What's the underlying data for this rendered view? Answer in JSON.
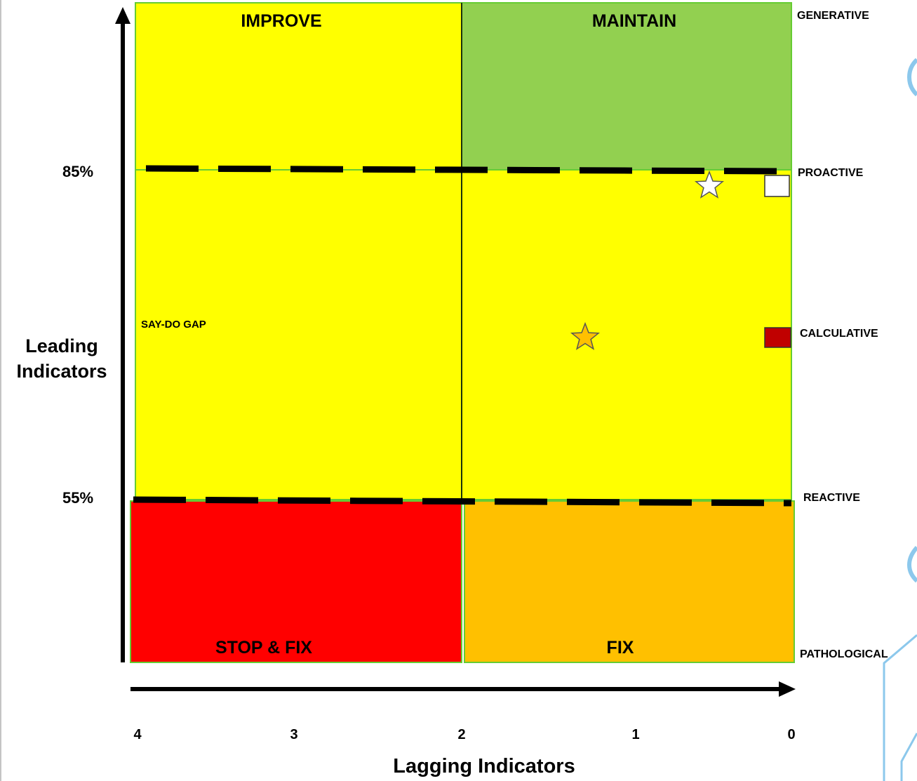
{
  "quadrants": {
    "improve": "IMPROVE",
    "maintain": "MAINTAIN",
    "stop_fix": "STOP & FIX",
    "fix": "FIX"
  },
  "gap_label": "SAY-DO GAP",
  "culture_levels": {
    "generative": "GENERATIVE",
    "proactive": "PROACTIVE",
    "calculative": "CALCULATIVE",
    "reactive": "REACTIVE",
    "pathological": "PATHOLOGICAL"
  },
  "y_axis": {
    "label_line1": "Leading",
    "label_line2": "Indicators",
    "thresholds": [
      "85%",
      "55%"
    ]
  },
  "x_axis": {
    "label": "Lagging Indicators",
    "ticks": [
      "4",
      "3",
      "2",
      "1",
      "0"
    ]
  },
  "colors": {
    "yellow": "#ffff00",
    "green": "#92d050",
    "red": "#ff0000",
    "orange": "#ffc000",
    "border": "#66cc33",
    "star_orange": "#ffc000",
    "marker_red": "#c00000",
    "deco_blue": "#8cc8ec"
  },
  "markers": [
    {
      "name": "white-star",
      "shape": "star",
      "lagging": 0.5,
      "leading_pct": 84
    },
    {
      "name": "orange-star",
      "shape": "star",
      "lagging": 1.3,
      "leading_pct": 70
    },
    {
      "name": "white-square",
      "shape": "square",
      "lagging": 0,
      "leading_pct": 84
    },
    {
      "name": "red-square",
      "shape": "square",
      "lagging": 0,
      "leading_pct": 70
    }
  ]
}
